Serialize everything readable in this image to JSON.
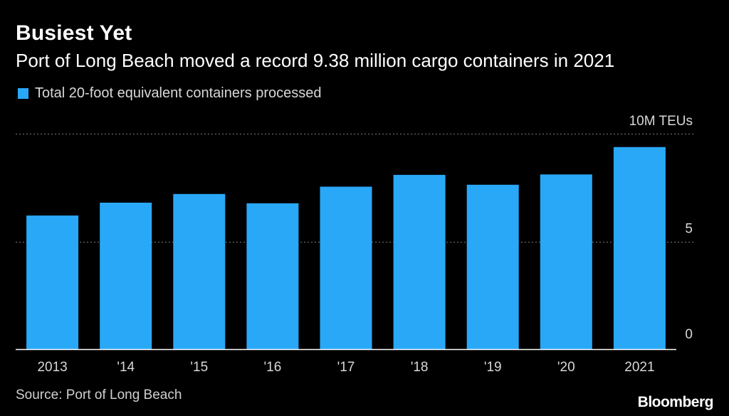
{
  "header": {
    "title": "Busiest Yet",
    "subtitle": "Port of Long Beach moved a record 9.38 million cargo containers in 2021"
  },
  "legend": {
    "label": "Total 20-foot equivalent containers processed",
    "color": "#2aa8f8"
  },
  "footer": {
    "source": "Source: Port of Long Beach",
    "brand": "Bloomberg"
  },
  "colors": {
    "background": "#000000",
    "bar": "#2aa8f8",
    "grid": "#7a7a7a",
    "text": "#ffffff",
    "axis_text": "#d8d8d8"
  },
  "chart_data": {
    "type": "bar",
    "categories": [
      "2013",
      "'14",
      "'15",
      "'16",
      "'17",
      "'18",
      "'19",
      "'20",
      "2021"
    ],
    "values": [
      6.2,
      6.8,
      7.2,
      6.77,
      7.54,
      8.09,
      7.63,
      8.11,
      9.38
    ],
    "ylim": [
      0,
      10
    ],
    "yticks": [
      {
        "value": 0,
        "label": "0"
      },
      {
        "value": 5,
        "label": "5"
      },
      {
        "value": 10,
        "label": "10M TEUs"
      }
    ],
    "grid": true,
    "legend_position": "top-left"
  }
}
